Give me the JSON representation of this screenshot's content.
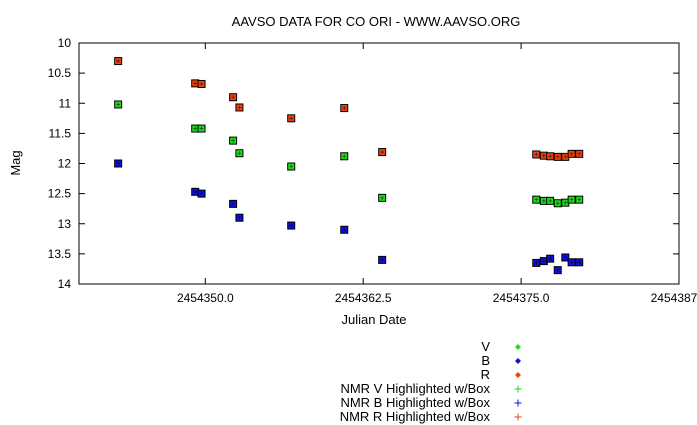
{
  "chart_data": {
    "type": "scatter",
    "title": "AAVSO DATA FOR CO ORI - WWW.AAVSO.ORG",
    "xlabel": "Julian Date",
    "ylabel": "Mag",
    "xlim": [
      2454340.0,
      2454387.5
    ],
    "ylim": [
      10,
      14
    ],
    "y_inverted": true,
    "x_ticks": [
      2454350.0,
      2454362.5,
      2454375.0,
      2454387.5
    ],
    "x_tick_labels": [
      "2454350.0",
      "2454362.5",
      "2454375.0",
      "2454387.5"
    ],
    "y_ticks": [
      10,
      10.5,
      11,
      11.5,
      12,
      12.5,
      13,
      13.5,
      14
    ],
    "y_tick_labels": [
      "10",
      "10.5",
      "11",
      "11.5",
      "12",
      "12.5",
      "13",
      "13.5",
      "14"
    ],
    "grid": false,
    "legend_position": "bottom-right",
    "series": [
      {
        "name": "V",
        "color": "#22dd22",
        "marker": "diamond",
        "highlighted": true,
        "x": [
          2454343.1,
          2454349.2,
          2454349.7,
          2454352.2,
          2454352.7,
          2454356.8,
          2454361.0,
          2454364.0,
          2454376.2,
          2454376.8,
          2454377.3,
          2454377.9,
          2454378.5,
          2454379.0,
          2454379.6
        ],
        "y": [
          11.02,
          11.42,
          11.42,
          11.62,
          11.83,
          12.05,
          11.88,
          12.57,
          12.6,
          12.62,
          12.62,
          12.66,
          12.65,
          12.6,
          12.6
        ]
      },
      {
        "name": "B",
        "color": "#1111dd",
        "marker": "diamond",
        "highlighted": true,
        "x": [
          2454343.1,
          2454349.2,
          2454349.7,
          2454352.2,
          2454352.7,
          2454356.8,
          2454361.0,
          2454364.0,
          2454376.2,
          2454376.8,
          2454377.3,
          2454377.9,
          2454378.5,
          2454379.0,
          2454379.6
        ],
        "y": [
          12.0,
          12.47,
          12.5,
          12.67,
          12.9,
          13.03,
          13.1,
          13.6,
          13.65,
          13.62,
          13.58,
          13.77,
          13.56,
          13.64,
          13.64
        ]
      },
      {
        "name": "R",
        "color": "#ee4411",
        "marker": "diamond",
        "highlighted": true,
        "x": [
          2454343.1,
          2454349.2,
          2454349.7,
          2454352.2,
          2454352.7,
          2454356.8,
          2454361.0,
          2454364.0,
          2454376.2,
          2454376.8,
          2454377.3,
          2454377.9,
          2454378.5,
          2454379.0,
          2454379.6
        ],
        "y": [
          10.3,
          10.67,
          10.68,
          10.9,
          11.07,
          11.25,
          11.08,
          11.81,
          11.85,
          11.87,
          11.88,
          11.89,
          11.89,
          11.84,
          11.84
        ]
      }
    ],
    "legend": [
      {
        "label": "V",
        "color": "#22dd22",
        "marker": "diamond"
      },
      {
        "label": "B",
        "color": "#1111dd",
        "marker": "diamond"
      },
      {
        "label": "R",
        "color": "#ee4411",
        "marker": "diamond"
      },
      {
        "label": "NMR V Highlighted w/Box",
        "color": "#22dd22",
        "marker": "plus"
      },
      {
        "label": "NMR B Highlighted w/Box",
        "color": "#1111dd",
        "marker": "plus"
      },
      {
        "label": "NMR R Highlighted w/Box",
        "color": "#ee4411",
        "marker": "plus"
      }
    ]
  }
}
